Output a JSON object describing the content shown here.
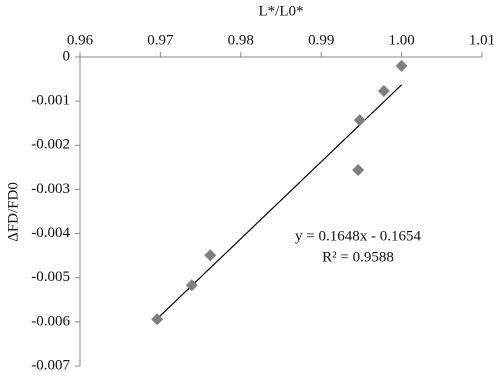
{
  "chart_data": {
    "type": "scatter",
    "x_label": "L*/L0*",
    "y_label": "ΔFD/FD0",
    "x": [
      0.9696,
      0.9739,
      0.9762,
      0.9946,
      0.9948,
      0.9978,
      1.0
    ],
    "series": [
      {
        "color": "#7f7f7f",
        "values": [
          -0.00594,
          -0.00517,
          -0.00449,
          -0.00256,
          -0.00143,
          -0.00077,
          -0.0002
        ]
      }
    ],
    "trendline": {
      "x": [
        0.9692,
        1.0
      ],
      "y": [
        -0.006,
        -0.00063
      ],
      "color": "#000000"
    },
    "annotations": [
      "y = 0.1648x - 0.1654",
      "R² = 0.9588"
    ],
    "xlim": [
      0.96,
      1.01
    ],
    "xticks": [
      0.96,
      0.97,
      0.98,
      0.99,
      {
        "value": 1.0,
        "label": "1.00"
      },
      1.01
    ],
    "ylim": [
      -0.007,
      0
    ],
    "yticks": [
      0,
      -0.001,
      -0.002,
      -0.003,
      -0.004,
      -0.005,
      -0.006,
      -0.007
    ],
    "x_axis_position": "top",
    "grid": false
  }
}
